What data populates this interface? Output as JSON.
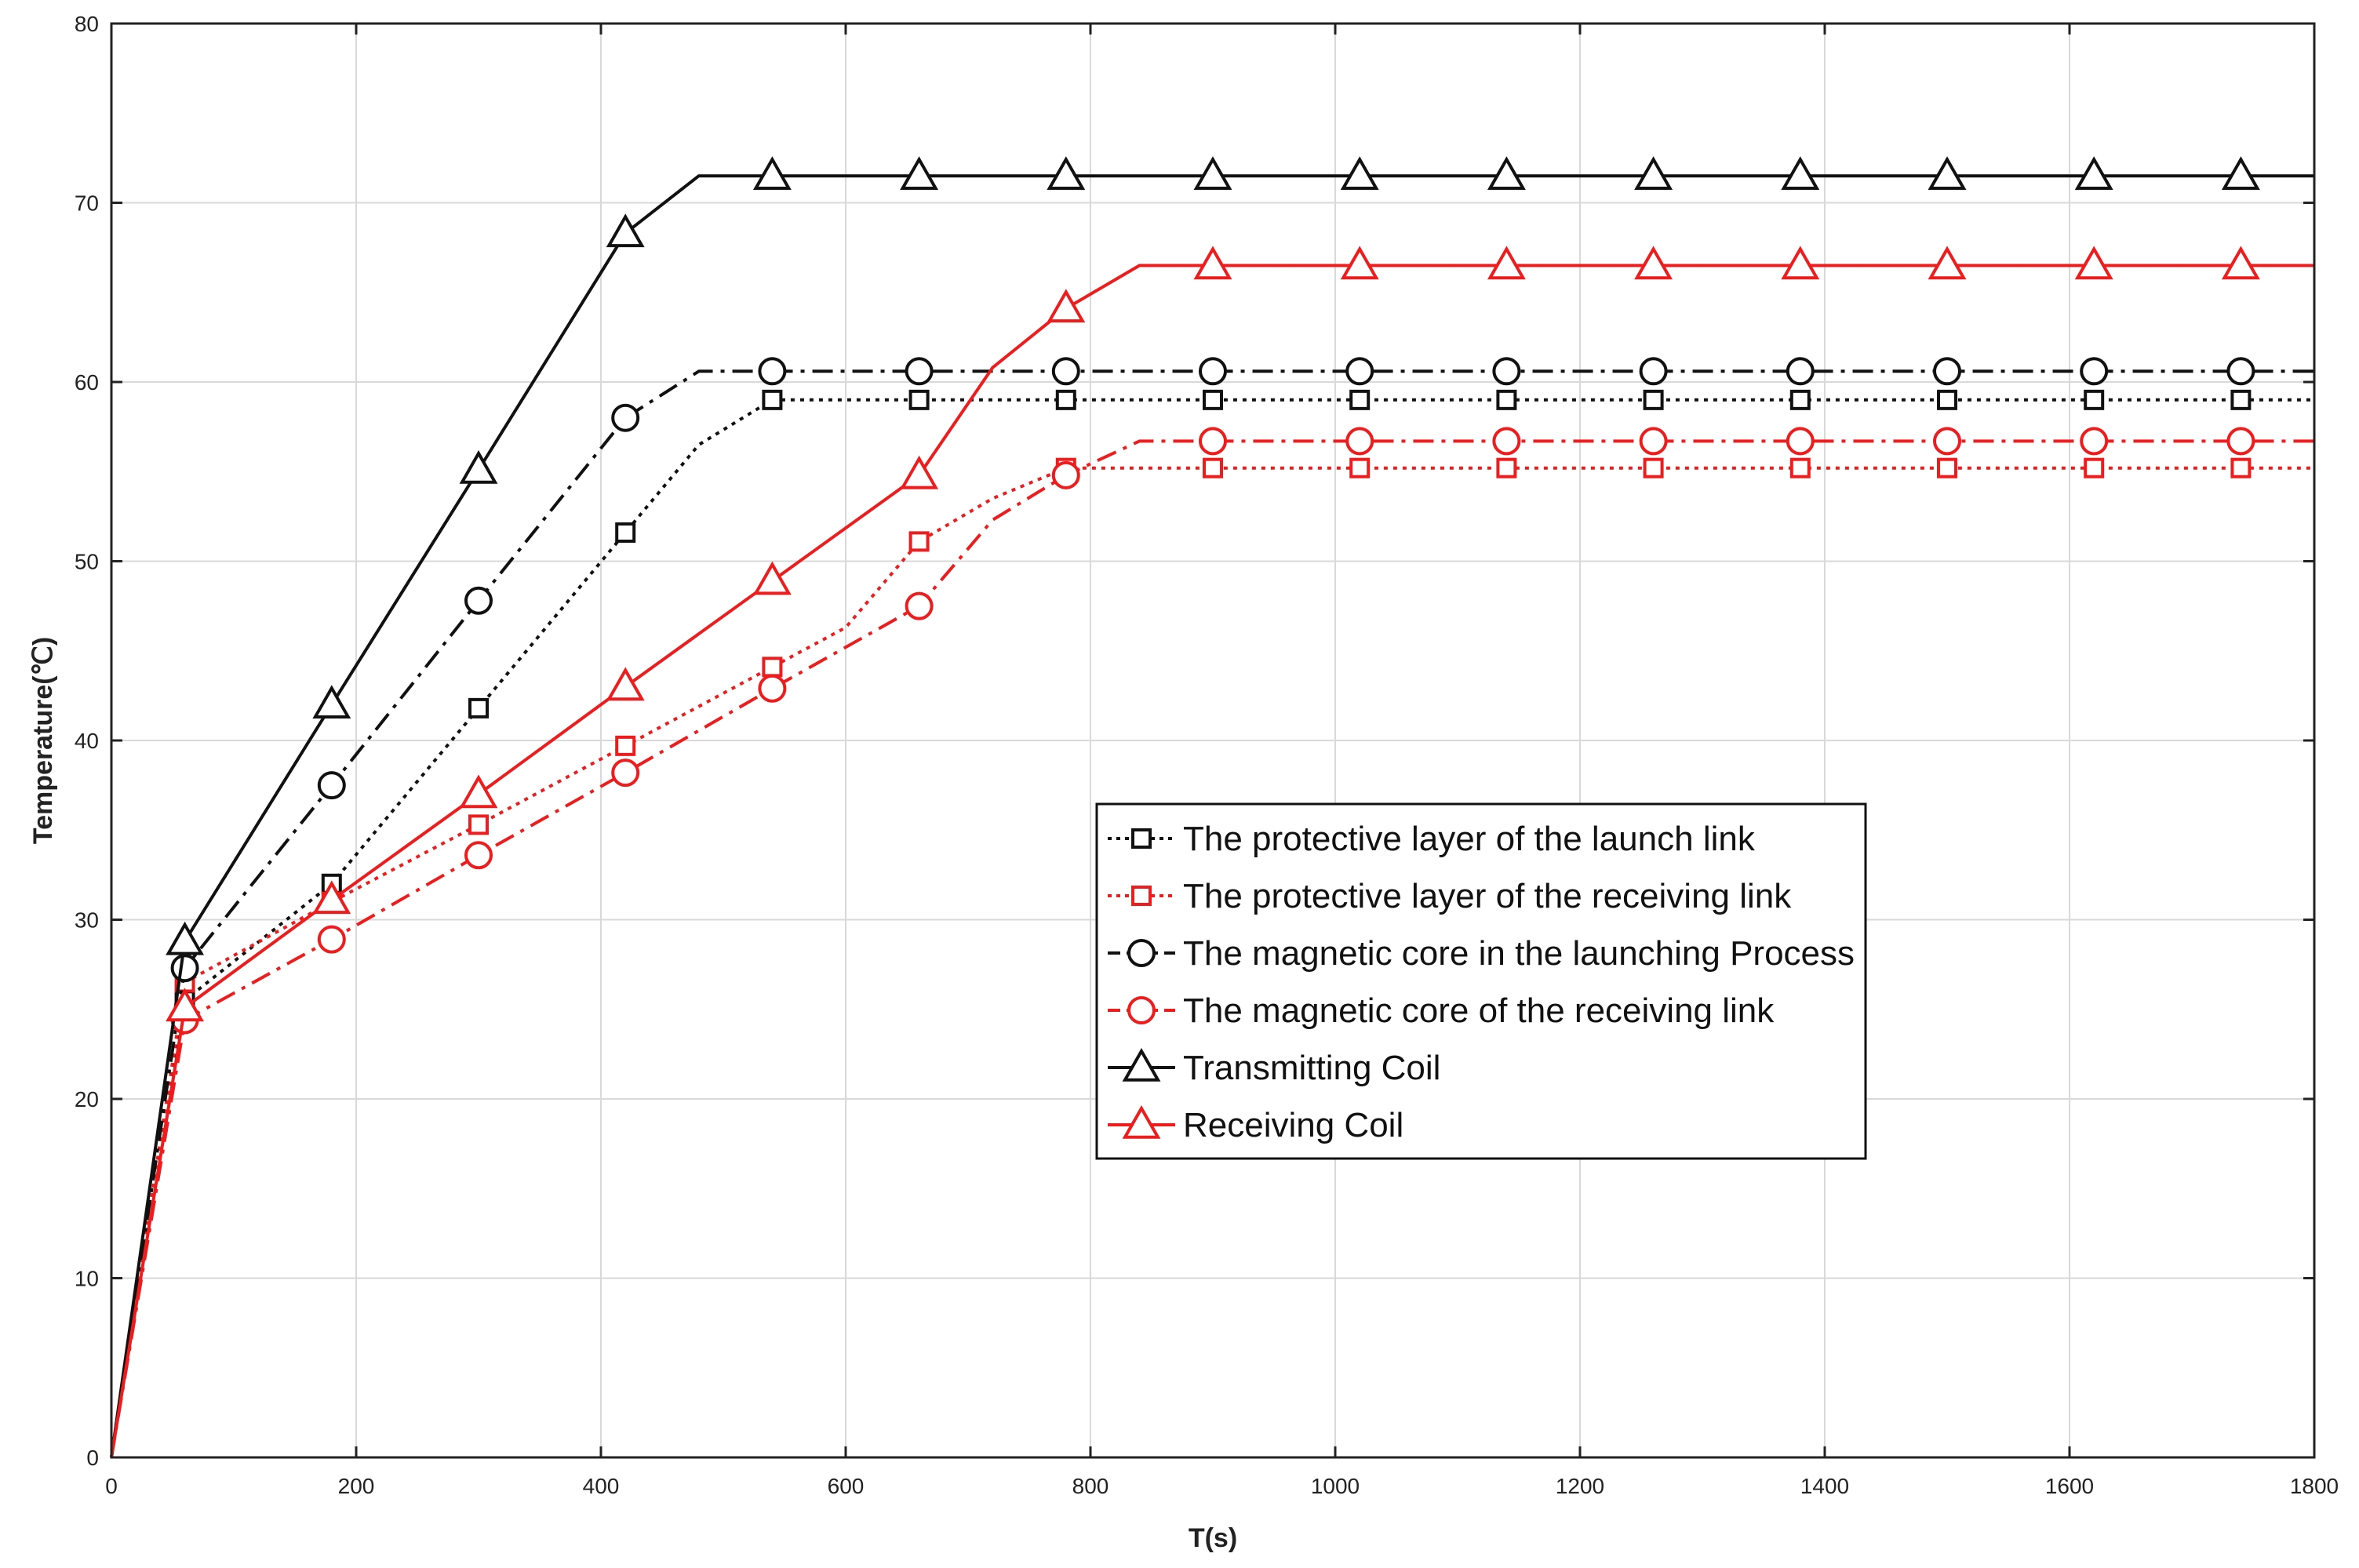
{
  "chart_data": {
    "type": "line",
    "title": "",
    "xlabel": "T(s)",
    "ylabel": "Temperature(℃)",
    "xlim": [
      0,
      1800
    ],
    "ylim": [
      0,
      80
    ],
    "xticks": [
      0,
      200,
      400,
      600,
      800,
      1000,
      1200,
      1400,
      1600,
      1800
    ],
    "yticks": [
      0,
      10,
      20,
      30,
      40,
      50,
      60,
      70,
      80
    ],
    "xtick_labels": [
      "0",
      "200",
      "400",
      "600",
      "800",
      "1000",
      "1200",
      "1400",
      "1600",
      "1800"
    ],
    "ytick_labels": [
      "0",
      "10",
      "20",
      "30",
      "40",
      "50",
      "60",
      "70",
      "80"
    ],
    "grid": true,
    "legend_position": "center-right",
    "series": [
      {
        "name": "The protective layer of the launch link",
        "color": "#111111",
        "line_style": "dotted",
        "marker": "square",
        "points": [
          [
            0,
            0
          ],
          [
            60,
            25.5
          ],
          [
            180,
            32
          ],
          [
            300,
            41.8
          ],
          [
            420,
            51.6
          ],
          [
            480,
            56.5
          ],
          [
            540,
            59
          ],
          [
            600,
            59
          ],
          [
            660,
            59
          ],
          [
            720,
            59
          ],
          [
            780,
            59
          ],
          [
            840,
            59
          ],
          [
            900,
            59
          ],
          [
            1020,
            59
          ],
          [
            1140,
            59
          ],
          [
            1260,
            59
          ],
          [
            1380,
            59
          ],
          [
            1500,
            59
          ],
          [
            1620,
            59
          ],
          [
            1740,
            59
          ],
          [
            1800,
            59
          ]
        ],
        "marker_x": [
          60,
          180,
          300,
          420,
          540,
          660,
          780,
          900,
          1020,
          1140,
          1260,
          1380,
          1500,
          1620,
          1740
        ]
      },
      {
        "name": "The protective layer of the receiving link",
        "color": "#ee1c1c",
        "line_style": "dotted",
        "marker": "square",
        "points": [
          [
            0,
            0
          ],
          [
            60,
            26.5
          ],
          [
            180,
            31
          ],
          [
            300,
            35.3
          ],
          [
            420,
            39.7
          ],
          [
            540,
            44.1
          ],
          [
            600,
            46.3
          ],
          [
            660,
            51.1
          ],
          [
            720,
            53.5
          ],
          [
            780,
            55.2
          ],
          [
            840,
            55.2
          ],
          [
            900,
            55.2
          ],
          [
            1020,
            55.2
          ],
          [
            1140,
            55.2
          ],
          [
            1260,
            55.2
          ],
          [
            1380,
            55.2
          ],
          [
            1500,
            55.2
          ],
          [
            1620,
            55.2
          ],
          [
            1740,
            55.2
          ],
          [
            1800,
            55.2
          ]
        ],
        "marker_x": [
          60,
          180,
          300,
          420,
          540,
          660,
          780,
          900,
          1020,
          1140,
          1260,
          1380,
          1500,
          1620,
          1740
        ]
      },
      {
        "name": "The magnetic core in the launching Process",
        "color": "#111111",
        "line_style": "dashdot",
        "marker": "circle",
        "points": [
          [
            0,
            0
          ],
          [
            60,
            27.3
          ],
          [
            180,
            37.5
          ],
          [
            300,
            47.8
          ],
          [
            420,
            58
          ],
          [
            480,
            60.6
          ],
          [
            540,
            60.6
          ],
          [
            660,
            60.6
          ],
          [
            780,
            60.6
          ],
          [
            900,
            60.6
          ],
          [
            1020,
            60.6
          ],
          [
            1140,
            60.6
          ],
          [
            1260,
            60.6
          ],
          [
            1380,
            60.6
          ],
          [
            1500,
            60.6
          ],
          [
            1620,
            60.6
          ],
          [
            1740,
            60.6
          ],
          [
            1800,
            60.6
          ]
        ],
        "marker_x": [
          60,
          180,
          300,
          420,
          540,
          660,
          780,
          900,
          1020,
          1140,
          1260,
          1380,
          1500,
          1620,
          1740
        ]
      },
      {
        "name": "The magnetic core of the receiving link",
        "color": "#ee1c1c",
        "line_style": "dashdot",
        "marker": "circle",
        "points": [
          [
            0,
            0
          ],
          [
            60,
            24.4
          ],
          [
            180,
            28.9
          ],
          [
            300,
            33.6
          ],
          [
            420,
            38.2
          ],
          [
            540,
            42.9
          ],
          [
            660,
            47.5
          ],
          [
            720,
            52.3
          ],
          [
            780,
            54.8
          ],
          [
            840,
            56.7
          ],
          [
            900,
            56.7
          ],
          [
            1020,
            56.7
          ],
          [
            1140,
            56.7
          ],
          [
            1260,
            56.7
          ],
          [
            1380,
            56.7
          ],
          [
            1500,
            56.7
          ],
          [
            1620,
            56.7
          ],
          [
            1740,
            56.7
          ],
          [
            1800,
            56.7
          ]
        ],
        "marker_x": [
          60,
          180,
          300,
          420,
          540,
          660,
          780,
          900,
          1020,
          1140,
          1260,
          1380,
          1500,
          1620,
          1740
        ]
      },
      {
        "name": "Transmitting Coil",
        "color": "#111111",
        "line_style": "solid",
        "marker": "triangle",
        "points": [
          [
            0,
            0
          ],
          [
            60,
            28.8
          ],
          [
            180,
            42
          ],
          [
            300,
            55.1
          ],
          [
            420,
            68.3
          ],
          [
            480,
            71.5
          ],
          [
            540,
            71.5
          ],
          [
            660,
            71.5
          ],
          [
            780,
            71.5
          ],
          [
            900,
            71.5
          ],
          [
            1020,
            71.5
          ],
          [
            1140,
            71.5
          ],
          [
            1260,
            71.5
          ],
          [
            1380,
            71.5
          ],
          [
            1500,
            71.5
          ],
          [
            1620,
            71.5
          ],
          [
            1740,
            71.5
          ],
          [
            1800,
            71.5
          ]
        ],
        "marker_x": [
          60,
          180,
          300,
          420,
          540,
          660,
          780,
          900,
          1020,
          1140,
          1260,
          1380,
          1500,
          1620,
          1740
        ]
      },
      {
        "name": "Receiving Coil",
        "color": "#ee1c1c",
        "line_style": "solid",
        "marker": "triangle",
        "points": [
          [
            0,
            0
          ],
          [
            60,
            25.1
          ],
          [
            180,
            31.1
          ],
          [
            300,
            37
          ],
          [
            420,
            43
          ],
          [
            540,
            48.9
          ],
          [
            660,
            54.8
          ],
          [
            720,
            60.8
          ],
          [
            780,
            64.1
          ],
          [
            840,
            66.5
          ],
          [
            900,
            66.5
          ],
          [
            1020,
            66.5
          ],
          [
            1140,
            66.5
          ],
          [
            1260,
            66.5
          ],
          [
            1380,
            66.5
          ],
          [
            1500,
            66.5
          ],
          [
            1620,
            66.5
          ],
          [
            1740,
            66.5
          ],
          [
            1800,
            66.5
          ]
        ],
        "marker_x": [
          60,
          180,
          300,
          420,
          540,
          660,
          780,
          900,
          1020,
          1140,
          1260,
          1380,
          1500,
          1620,
          1740
        ]
      }
    ]
  }
}
